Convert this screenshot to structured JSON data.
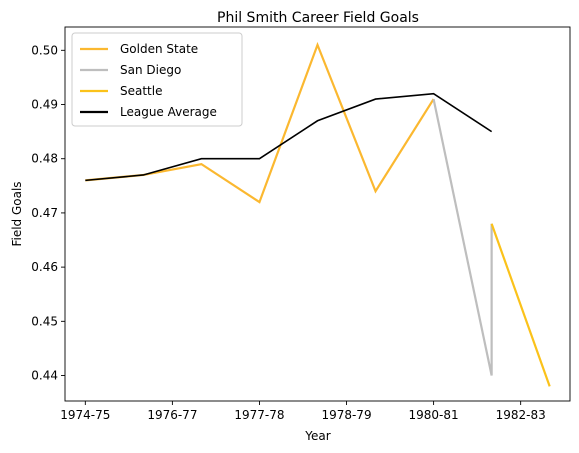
{
  "chart_data": {
    "type": "line",
    "title": "Phil Smith  Career Field Goals",
    "xlabel": "Year",
    "ylabel": "Field Goals",
    "x_ticks": [
      "1974-75",
      "1976-77",
      "1977-78",
      "1978-79",
      "1980-81",
      "1982-83"
    ],
    "x_tick_positions": [
      0,
      1.5,
      3,
      4.5,
      6,
      7.5
    ],
    "xlim": [
      -0.35,
      8.35
    ],
    "ylim": [
      0.4353,
      0.5043
    ],
    "y_ticks": [
      0.44,
      0.45,
      0.46,
      0.47,
      0.48,
      0.49,
      0.5
    ],
    "y_tick_labels": [
      "0.44",
      "0.45",
      "0.46",
      "0.47",
      "0.48",
      "0.49",
      "0.50"
    ],
    "grid": false,
    "legend_position": "top-left",
    "series": [
      {
        "name": "Golden State",
        "color": "#FBB830",
        "x": [
          0,
          1,
          2,
          3,
          4,
          5,
          6
        ],
        "y": [
          0.476,
          0.477,
          0.479,
          0.472,
          0.501,
          0.474,
          0.491
        ]
      },
      {
        "name": "San Diego",
        "color": "#BEBEBE",
        "x": [
          6,
          7,
          7
        ],
        "y": [
          0.491,
          0.44,
          0.468
        ]
      },
      {
        "name": "Seattle",
        "color": "#FBC21A",
        "x": [
          7,
          8
        ],
        "y": [
          0.468,
          0.438
        ]
      },
      {
        "name": "League Average",
        "color": "#000000",
        "x": [
          0,
          1,
          2,
          3,
          4,
          5,
          6,
          7
        ],
        "y": [
          0.476,
          0.477,
          0.48,
          0.48,
          0.487,
          0.491,
          0.492,
          0.485
        ]
      }
    ]
  }
}
